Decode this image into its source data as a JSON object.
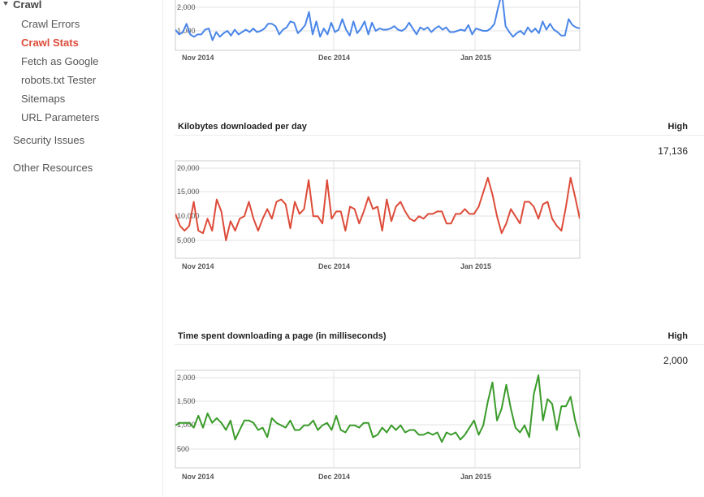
{
  "sidebar": {
    "group_label": "Crawl",
    "items": [
      {
        "label": "Crawl Errors",
        "active": false
      },
      {
        "label": "Crawl Stats",
        "active": true
      },
      {
        "label": "Fetch as Google",
        "active": false
      },
      {
        "label": "robots.txt Tester",
        "active": false
      },
      {
        "label": "Sitemaps",
        "active": false
      },
      {
        "label": "URL Parameters",
        "active": false
      }
    ],
    "top_items": [
      {
        "label": "Security Issues"
      },
      {
        "label": "Other Resources"
      }
    ]
  },
  "sections": [
    {
      "title": "",
      "high_label": "",
      "high_value": ""
    },
    {
      "title": "Kilobytes downloaded per day",
      "high_label": "High",
      "high_value": "17,136"
    },
    {
      "title": "Time spent downloading a page (in milliseconds)",
      "high_label": "High",
      "high_value": "2,000"
    }
  ],
  "chart_data": [
    {
      "type": "line",
      "color": "#4a86e8",
      "x_labels": [
        "Nov 2014",
        "Dec 2014",
        "Jan 2015"
      ],
      "y_ticks": [
        "2,000",
        "1,000"
      ],
      "ylim": [
        0,
        2600
      ],
      "values": [
        1050,
        850,
        950,
        1300,
        850,
        750,
        850,
        850,
        1050,
        1100,
        600,
        950,
        750,
        900,
        1000,
        800,
        1050,
        850,
        950,
        1050,
        950,
        1100,
        950,
        1000,
        1100,
        1300,
        1300,
        1200,
        850,
        1050,
        1150,
        1400,
        1350,
        900,
        1050,
        1250,
        1800,
        850,
        1400,
        750,
        1100,
        850,
        1350,
        950,
        1050,
        1500,
        1050,
        800,
        1400,
        900,
        1100,
        1400,
        850,
        1350,
        1000,
        1100,
        1050,
        1050,
        1100,
        1200,
        1050,
        1000,
        1100,
        1350,
        1100,
        850,
        1150,
        1050,
        1150,
        950,
        1100,
        1200,
        1050,
        1150,
        950,
        950,
        1000,
        1050,
        1000,
        1250,
        850,
        1100,
        1050,
        1000,
        1000,
        1100,
        1300,
        2000,
        2600,
        1200,
        950,
        750,
        900,
        1000,
        850,
        1150,
        950,
        1100,
        900,
        1400,
        1050,
        1300,
        1050,
        950,
        800,
        800,
        1500,
        1250,
        1150,
        1100
      ]
    },
    {
      "type": "line",
      "color": "#dd4b39",
      "x_labels": [
        "Nov 2014",
        "Dec 2014",
        "Jan 2015"
      ],
      "y_ticks": [
        "20,000",
        "15,000",
        "10,000",
        "5,000"
      ],
      "ylim": [
        0,
        21000
      ],
      "values": [
        10500,
        8000,
        7000,
        8000,
        13000,
        7000,
        6500,
        9500,
        7000,
        13500,
        11000,
        5000,
        9000,
        7000,
        9500,
        10000,
        13000,
        9500,
        7000,
        9500,
        11500,
        9500,
        13000,
        13500,
        12500,
        7500,
        13000,
        10500,
        11500,
        17500,
        10000,
        10000,
        8500,
        17500,
        9500,
        11000,
        11000,
        7000,
        12000,
        11500,
        8500,
        11000,
        14000,
        11500,
        12000,
        7000,
        13500,
        9000,
        12000,
        13000,
        11000,
        9500,
        9000,
        10000,
        9500,
        10500,
        10500,
        11000,
        11000,
        8500,
        8500,
        10500,
        10500,
        11500,
        10500,
        10500,
        12000,
        15000,
        18000,
        14500,
        10000,
        6500,
        8500,
        11500,
        10000,
        8500,
        13000,
        13000,
        12000,
        9500,
        12500,
        13000,
        9500,
        8000,
        7000,
        12000,
        18000,
        14000,
        9500
      ]
    },
    {
      "type": "line",
      "color": "#3a9b2a",
      "x_labels": [
        "Nov 2014",
        "Dec 2014",
        "Jan 2015"
      ],
      "y_ticks": [
        "2,000",
        "1,500",
        "1,000",
        "500"
      ],
      "ylim": [
        0,
        2200
      ],
      "values": [
        1000,
        1050,
        1050,
        1050,
        950,
        1200,
        950,
        1250,
        1050,
        1150,
        1050,
        900,
        1100,
        700,
        900,
        1100,
        1100,
        1050,
        900,
        950,
        750,
        1150,
        1050,
        1000,
        950,
        1100,
        900,
        900,
        1000,
        1000,
        1100,
        900,
        1000,
        1050,
        900,
        1200,
        900,
        850,
        1000,
        1000,
        950,
        1050,
        1050,
        750,
        800,
        950,
        850,
        1000,
        900,
        1000,
        850,
        900,
        900,
        800,
        800,
        850,
        800,
        850,
        650,
        850,
        800,
        850,
        700,
        800,
        950,
        1100,
        800,
        1000,
        1500,
        1900,
        1100,
        1350,
        1850,
        1350,
        950,
        850,
        1000,
        750,
        1650,
        2050,
        1100,
        1550,
        1450,
        900,
        1400,
        1400,
        1600,
        1100,
        750
      ]
    }
  ]
}
